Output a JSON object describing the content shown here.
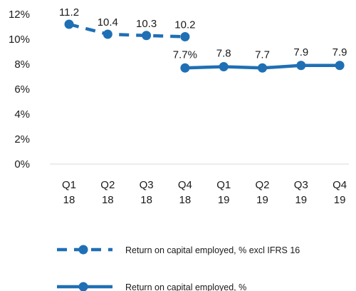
{
  "chart_data": {
    "type": "line",
    "categories": [
      "Q1 18",
      "Q2 18",
      "Q3 18",
      "Q4 18",
      "Q1 19",
      "Q2 19",
      "Q3 19",
      "Q4 19"
    ],
    "x_tick_labels": [
      [
        "Q1",
        "18"
      ],
      [
        "Q2",
        "18"
      ],
      [
        "Q3",
        "18"
      ],
      [
        "Q4",
        "18"
      ],
      [
        "Q1",
        "19"
      ],
      [
        "Q2",
        "19"
      ],
      [
        "Q3",
        "19"
      ],
      [
        "Q4",
        "19"
      ]
    ],
    "ylim": [
      0,
      12
    ],
    "y_ticks": [
      0,
      2,
      4,
      6,
      8,
      10,
      12
    ],
    "y_tick_labels": [
      "0%",
      "2%",
      "4%",
      "6%",
      "8%",
      "10%",
      "12%"
    ],
    "grid": false,
    "legend_position": "bottom",
    "series": [
      {
        "name": "Return on capital employed, % excl IFRS 16",
        "style": "dashed",
        "color": "#1f6fb5",
        "values": [
          11.2,
          10.4,
          10.3,
          10.2,
          null,
          null,
          null,
          null
        ],
        "labels": [
          "11.2",
          "10.4",
          "10.3",
          "10.2",
          null,
          null,
          null,
          null
        ]
      },
      {
        "name": "Return on capital employed, %",
        "style": "solid",
        "color": "#1f6fb5",
        "values": [
          null,
          null,
          null,
          7.7,
          7.8,
          7.7,
          7.9,
          7.9
        ],
        "labels": [
          null,
          null,
          null,
          "7.7%",
          "7.8",
          "7.7",
          "7.9",
          "7.9"
        ]
      }
    ]
  }
}
